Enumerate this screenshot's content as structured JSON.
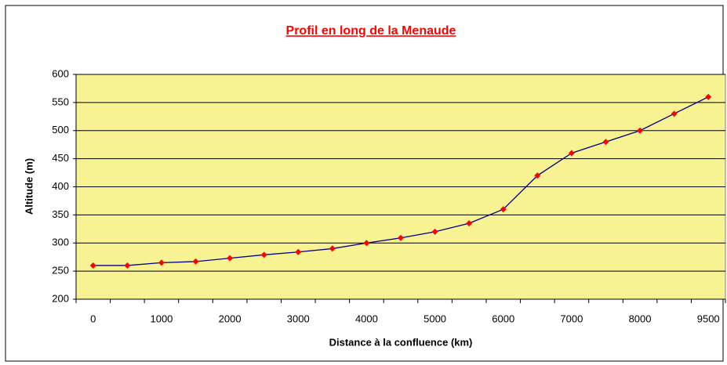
{
  "chart_data": {
    "type": "line",
    "title": "Profil en long de la Menaude",
    "x_label": "Distance à la confluence (km)",
    "y_label": "Altitude (m)",
    "categories": [
      "0",
      null,
      "1000",
      null,
      "2000",
      null,
      "3000",
      null,
      "4000",
      null,
      "5000",
      null,
      "6000",
      null,
      "7000",
      null,
      "8000",
      null,
      "9500"
    ],
    "values": [
      260,
      260,
      265,
      267,
      273,
      279,
      284,
      290,
      300,
      309,
      320,
      335,
      360,
      420,
      460,
      480,
      500,
      530,
      560
    ],
    "color": "#000080",
    "marker_color": "#ff0000",
    "background": "#f7f392",
    "ylim": [
      200,
      600
    ],
    "yticks": [
      200,
      250,
      300,
      350,
      400,
      450,
      500,
      550,
      600
    ],
    "grid": true
  }
}
